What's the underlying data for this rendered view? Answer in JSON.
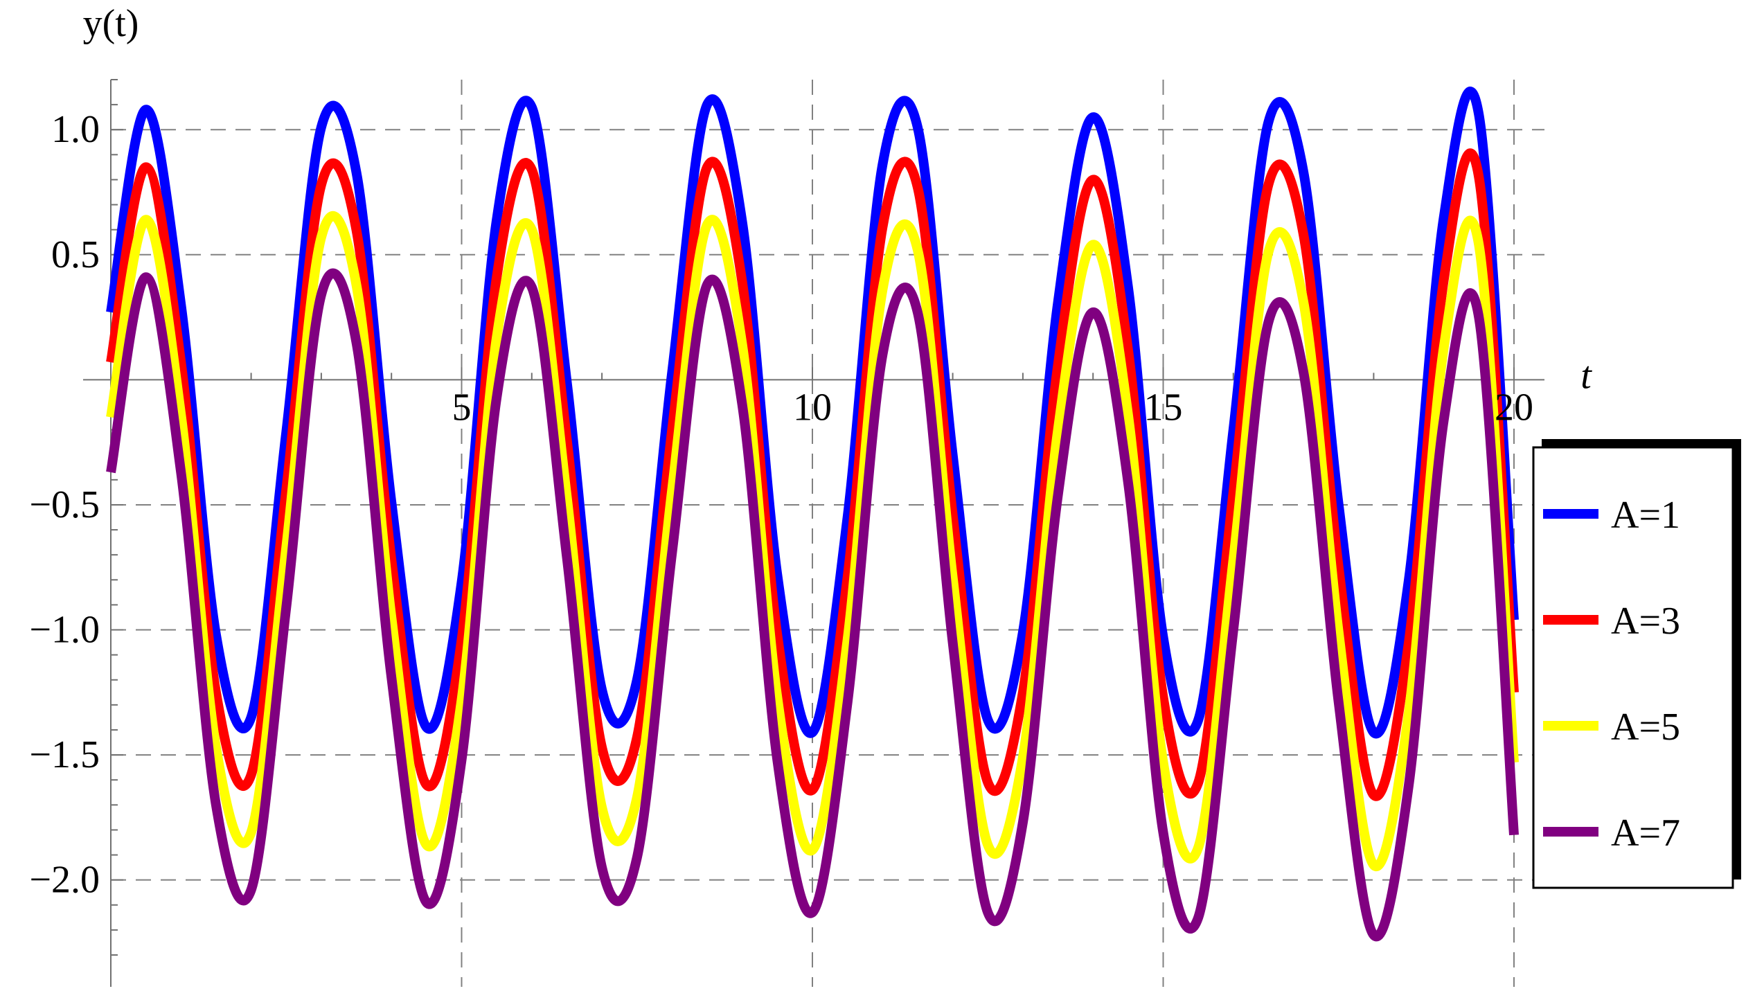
{
  "chart_data": {
    "type": "line",
    "xlabel": "t",
    "ylabel": "y(t)",
    "xlim": [
      0,
      20
    ],
    "ylim": [
      -2.3,
      1.2
    ],
    "xticks": [
      5,
      10,
      15,
      20
    ],
    "xtick_labels": [
      "5",
      "10",
      "15",
      "20"
    ],
    "yticks": [
      1.0,
      0.5,
      -0.5,
      -1.0,
      -1.5,
      -2.0
    ],
    "ytick_labels": [
      "1.0",
      "0.5",
      "−0.5",
      "−1.0",
      "−1.5",
      "−2.0"
    ],
    "grid": true,
    "grid_style": "dashed",
    "legend_position": "right",
    "series": [
      {
        "name": "A=1",
        "color": "#0000ff",
        "x": [
          0,
          0.5,
          1,
          1.5,
          2,
          2.5,
          3,
          3.5,
          4,
          4.5,
          5,
          5.5,
          6,
          6.5,
          7,
          7.5,
          8,
          8.5,
          9,
          9.5,
          10,
          10.5,
          11,
          11.5,
          12,
          12.5,
          13,
          13.5,
          14,
          14.5,
          15,
          15.5,
          16,
          16.5,
          17,
          17.5,
          18,
          18.5,
          19,
          19.5,
          20
        ],
        "y": [
          0.27,
          1.08,
          0.3,
          -1.02,
          -1.35,
          -0.21,
          1.01,
          0.83,
          -0.49,
          -1.39,
          -0.81,
          0.64,
          1.09,
          -0.01,
          -1.24,
          -1.2,
          0.03,
          1.1,
          0.63,
          -0.78,
          -1.41,
          -0.55,
          0.86,
          1.01,
          -0.3,
          -1.36,
          -1.01,
          0.31,
          1.05,
          0.37,
          -1.03,
          -1.36,
          -0.2,
          1.03,
          0.83,
          -0.5,
          -1.41,
          -0.8,
          0.65,
          1.06,
          -0.96
        ]
      },
      {
        "name": "A=3",
        "color": "#ff0000",
        "x": [
          0,
          0.5,
          1,
          1.5,
          2,
          2.5,
          3,
          3.5,
          4,
          4.5,
          5,
          5.5,
          6,
          6.5,
          7,
          7.5,
          8,
          8.5,
          9,
          9.5,
          10,
          10.5,
          11,
          11.5,
          12,
          12.5,
          13,
          13.5,
          14,
          14.5,
          15,
          15.5,
          16,
          16.5,
          17,
          17.5,
          18,
          18.5,
          19,
          19.5,
          20
        ],
        "y": [
          0.07,
          0.85,
          0.07,
          -1.25,
          -1.58,
          -0.44,
          0.78,
          0.6,
          -0.72,
          -1.62,
          -1.04,
          0.41,
          0.84,
          -0.24,
          -1.47,
          -1.43,
          -0.2,
          0.85,
          0.39,
          -1.02,
          -1.64,
          -0.79,
          0.61,
          0.77,
          -0.54,
          -1.61,
          -1.25,
          0.06,
          0.8,
          0.12,
          -1.27,
          -1.61,
          -0.45,
          0.78,
          0.58,
          -0.75,
          -1.66,
          -1.05,
          0.4,
          0.81,
          -1.25
        ]
      },
      {
        "name": "A=5",
        "color": "#ffff00",
        "x": [
          0,
          0.5,
          1,
          1.5,
          2,
          2.5,
          3,
          3.5,
          4,
          4.5,
          5,
          5.5,
          6,
          6.5,
          7,
          7.5,
          8,
          8.5,
          9,
          9.5,
          10,
          10.5,
          11,
          11.5,
          12,
          12.5,
          13,
          13.5,
          14,
          14.5,
          15,
          15.5,
          16,
          16.5,
          17,
          17.5,
          18,
          18.5,
          19,
          19.5,
          20
        ],
        "y": [
          -0.15,
          0.64,
          -0.14,
          -1.47,
          -1.81,
          -0.67,
          0.57,
          0.38,
          -0.95,
          -1.86,
          -1.28,
          0.17,
          0.6,
          -0.47,
          -1.71,
          -1.67,
          -0.44,
          0.62,
          0.14,
          -1.27,
          -1.88,
          -1.04,
          0.36,
          0.52,
          -0.79,
          -1.86,
          -1.51,
          -0.2,
          0.54,
          -0.14,
          -1.53,
          -1.87,
          -0.72,
          0.51,
          0.31,
          -1.01,
          -1.94,
          -1.33,
          0.13,
          0.54,
          -1.53
        ]
      },
      {
        "name": "A=7",
        "color": "#800080",
        "x": [
          0,
          0.5,
          1,
          1.5,
          2,
          2.5,
          3,
          3.5,
          4,
          4.5,
          5,
          5.5,
          6,
          6.5,
          7,
          7.5,
          8,
          8.5,
          9,
          9.5,
          10,
          10.5,
          11,
          11.5,
          12,
          12.5,
          13,
          13.5,
          14,
          14.5,
          15,
          15.5,
          16,
          16.5,
          17,
          17.5,
          18,
          18.5,
          19,
          19.5,
          20
        ],
        "y": [
          -0.37,
          0.41,
          -0.37,
          -1.7,
          -2.04,
          -0.91,
          0.34,
          0.15,
          -1.19,
          -2.09,
          -1.52,
          -0.07,
          0.37,
          -0.71,
          -1.95,
          -1.91,
          -0.69,
          0.38,
          -0.1,
          -1.52,
          -2.13,
          -1.29,
          0.1,
          0.27,
          -1.05,
          -2.13,
          -1.77,
          -0.46,
          0.27,
          -0.41,
          -1.81,
          -2.15,
          -1.0,
          0.23,
          0.03,
          -1.29,
          -2.22,
          -1.62,
          -0.16,
          0.25,
          -1.82
        ]
      }
    ]
  }
}
